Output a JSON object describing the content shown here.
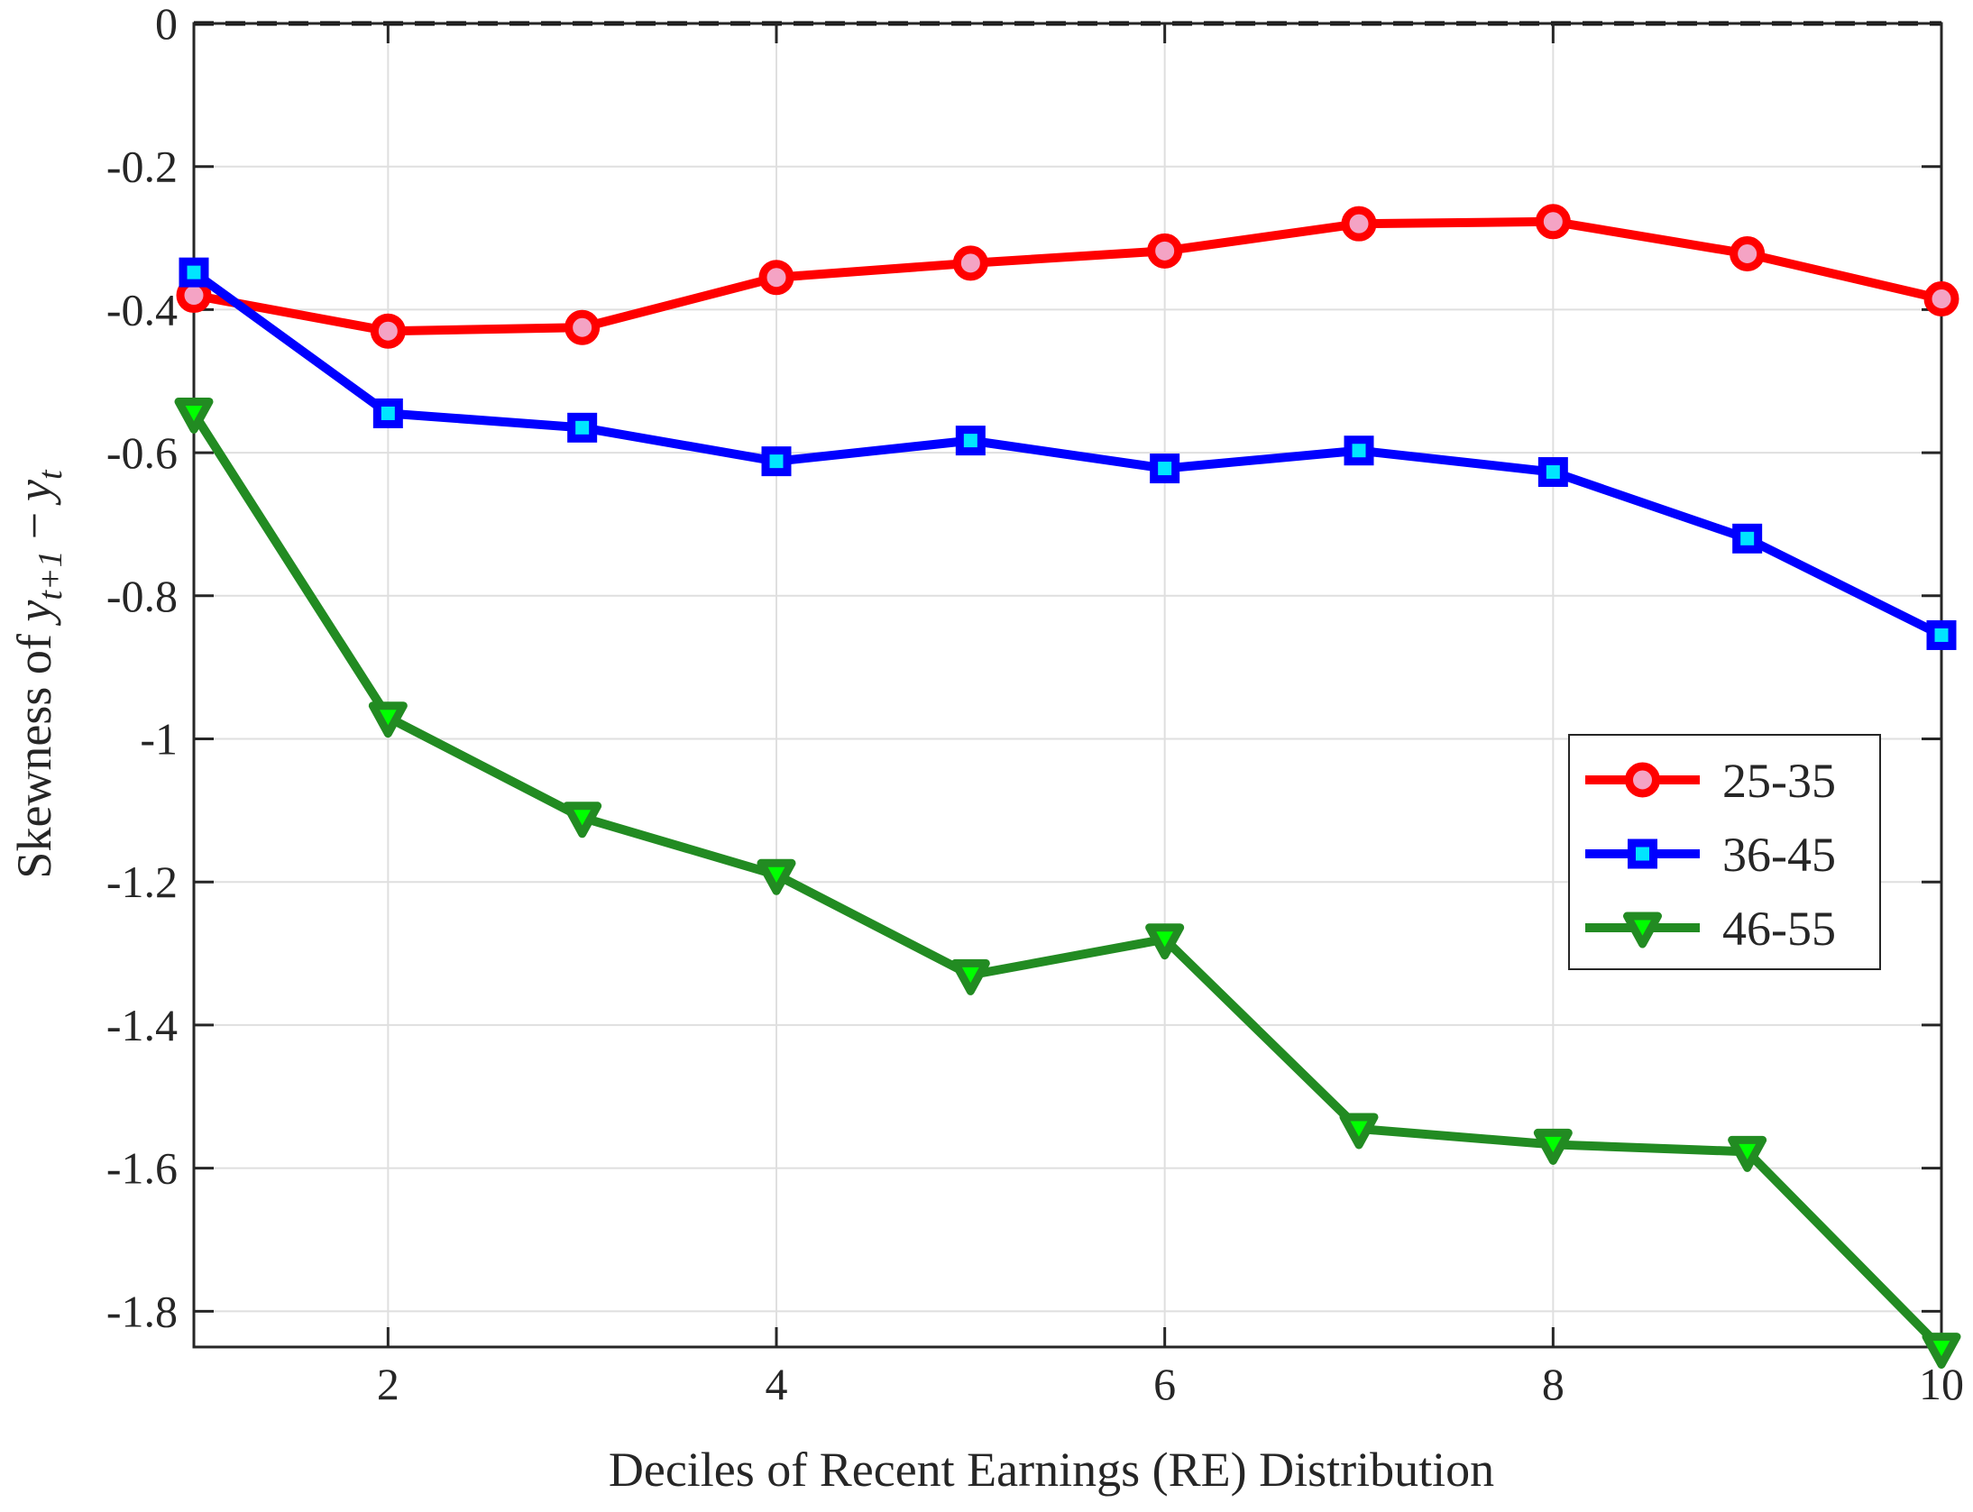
{
  "chart_data": {
    "type": "line",
    "title": "",
    "xlabel": "Deciles of Recent Earnings (RE) Distribution",
    "ylabel_prefix": "Skewness of ",
    "ylabel_math": {
      "y": "y",
      "sub1": "t+1",
      "minus": "−",
      "y2": "y",
      "sub2": "t"
    },
    "x": [
      1,
      2,
      3,
      4,
      5,
      6,
      7,
      8,
      9,
      10
    ],
    "xlim": [
      1,
      10
    ],
    "ylim": [
      -1.85,
      0
    ],
    "xticks": [
      2,
      4,
      6,
      8,
      10
    ],
    "xtick_labels": [
      "2",
      "4",
      "6",
      "8",
      "10"
    ],
    "yticks": [
      0,
      -0.2,
      -0.4,
      -0.6,
      -0.8,
      -1,
      -1.2,
      -1.4,
      -1.6,
      -1.8
    ],
    "ytick_labels": [
      "0",
      "-0.2",
      "-0.4",
      "-0.6",
      "-0.8",
      "-1",
      "-1.2",
      "-1.4",
      "-1.6",
      "-1.8"
    ],
    "grid": true,
    "reference_line": {
      "y": 0,
      "style": "dashed",
      "color": "#000000"
    },
    "legend_position": "right",
    "series": [
      {
        "name": "25-35",
        "marker": "circle",
        "color": "#ff0000",
        "marker_fill": "#f4a3c4",
        "values": [
          -0.38,
          -0.43,
          -0.425,
          -0.355,
          -0.335,
          -0.318,
          -0.28,
          -0.277,
          -0.322,
          -0.385
        ]
      },
      {
        "name": "36-45",
        "marker": "square",
        "color": "#0000ff",
        "marker_fill": "#00e5ff",
        "values": [
          -0.348,
          -0.545,
          -0.565,
          -0.612,
          -0.583,
          -0.622,
          -0.597,
          -0.627,
          -0.72,
          -0.855
        ]
      },
      {
        "name": "46-55",
        "marker": "triangle-down",
        "color": "#228b22",
        "marker_fill": "#00ff00",
        "values": [
          -0.545,
          -0.97,
          -1.11,
          -1.19,
          -1.33,
          -1.28,
          -1.545,
          -1.567,
          -1.577,
          -1.852
        ]
      }
    ]
  }
}
